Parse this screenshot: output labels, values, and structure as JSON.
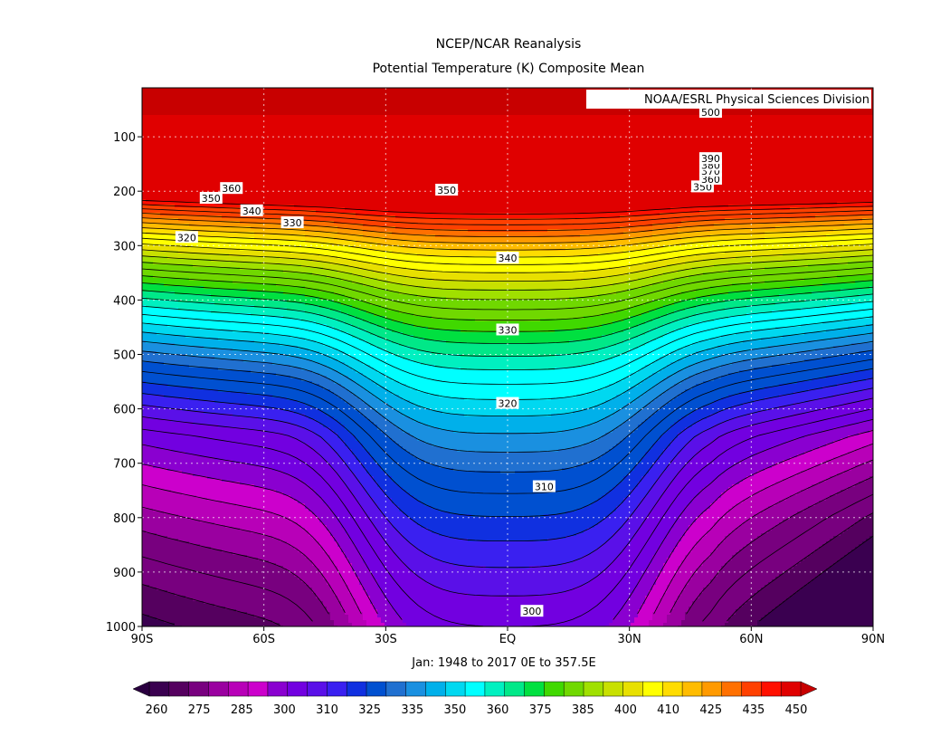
{
  "chart_data": {
    "type": "contour",
    "title": "NCEP/NCAR Reanalysis",
    "subtitle": "Potential Temperature (K) Composite Mean",
    "credit": "NOAA/ESRL Physical Sciences Division",
    "xlabel": "Jan: 1948 to 2017 0E to 357.5E",
    "x_ticks": [
      "90S",
      "60S",
      "30S",
      "EQ",
      "30N",
      "60N",
      "90N"
    ],
    "x_values": [
      -90,
      -60,
      -30,
      0,
      30,
      60,
      90
    ],
    "y_ticks": [
      "100",
      "200",
      "300",
      "400",
      "500",
      "600",
      "700",
      "800",
      "900",
      "1000"
    ],
    "y_values": [
      100,
      200,
      300,
      400,
      500,
      600,
      700,
      800,
      900,
      1000
    ],
    "ylim": [
      10,
      1000
    ],
    "xlim": [
      -90,
      90
    ],
    "grid": true,
    "contour_levels": [
      260,
      265,
      270,
      275,
      280,
      285,
      290,
      295,
      300,
      305,
      310,
      315,
      320,
      325,
      330,
      335,
      340,
      345,
      350,
      355,
      360,
      365,
      370,
      375,
      380,
      385,
      390,
      395,
      400,
      405,
      410,
      415,
      420,
      425,
      430,
      435,
      440,
      445,
      450
    ],
    "contour_labels": [
      {
        "text": "360",
        "lat": -68,
        "p": 195
      },
      {
        "text": "350",
        "lat": -73,
        "p": 213
      },
      {
        "text": "340",
        "lat": -63,
        "p": 236
      },
      {
        "text": "330",
        "lat": -53,
        "p": 258
      },
      {
        "text": "320",
        "lat": -79,
        "p": 285
      },
      {
        "text": "350",
        "lat": -15,
        "p": 198
      },
      {
        "text": "340",
        "lat": 0,
        "p": 323
      },
      {
        "text": "330",
        "lat": 0,
        "p": 455
      },
      {
        "text": "320",
        "lat": 0,
        "p": 590
      },
      {
        "text": "310",
        "lat": 9,
        "p": 743
      },
      {
        "text": "300",
        "lat": 6,
        "p": 972
      },
      {
        "text": "350",
        "lat": 48,
        "p": 192
      },
      {
        "text": "360",
        "lat": 50,
        "p": 178
      },
      {
        "text": "370",
        "lat": 50,
        "p": 163
      },
      {
        "text": "380",
        "lat": 50,
        "p": 152
      },
      {
        "text": "390",
        "lat": 50,
        "p": 140
      },
      {
        "text": "500",
        "lat": 50,
        "p": 55
      }
    ],
    "colorbar": {
      "labels": [
        "260",
        "275",
        "285",
        "300",
        "310",
        "325",
        "335",
        "350",
        "360",
        "375",
        "385",
        "400",
        "410",
        "425",
        "435",
        "450"
      ],
      "colors": [
        "#3a0050",
        "#55005f",
        "#78007f",
        "#9a00a0",
        "#b800b8",
        "#cc00cc",
        "#8a00d0",
        "#7200e0",
        "#5a10e8",
        "#3a20f0",
        "#1030e0",
        "#0050d0",
        "#2070d0",
        "#1a90e0",
        "#00b0ea",
        "#00d8f0",
        "#00ffff",
        "#00f0c0",
        "#00e888",
        "#00e040",
        "#40d800",
        "#70d800",
        "#a0e000",
        "#c8e000",
        "#e8e000",
        "#ffff00",
        "#ffdc00",
        "#ffbc00",
        "#ff9a00",
        "#ff7000",
        "#ff4000",
        "#ff1000",
        "#e00000"
      ],
      "arrow_low": "#2a0040",
      "arrow_high": "#c80000"
    }
  }
}
